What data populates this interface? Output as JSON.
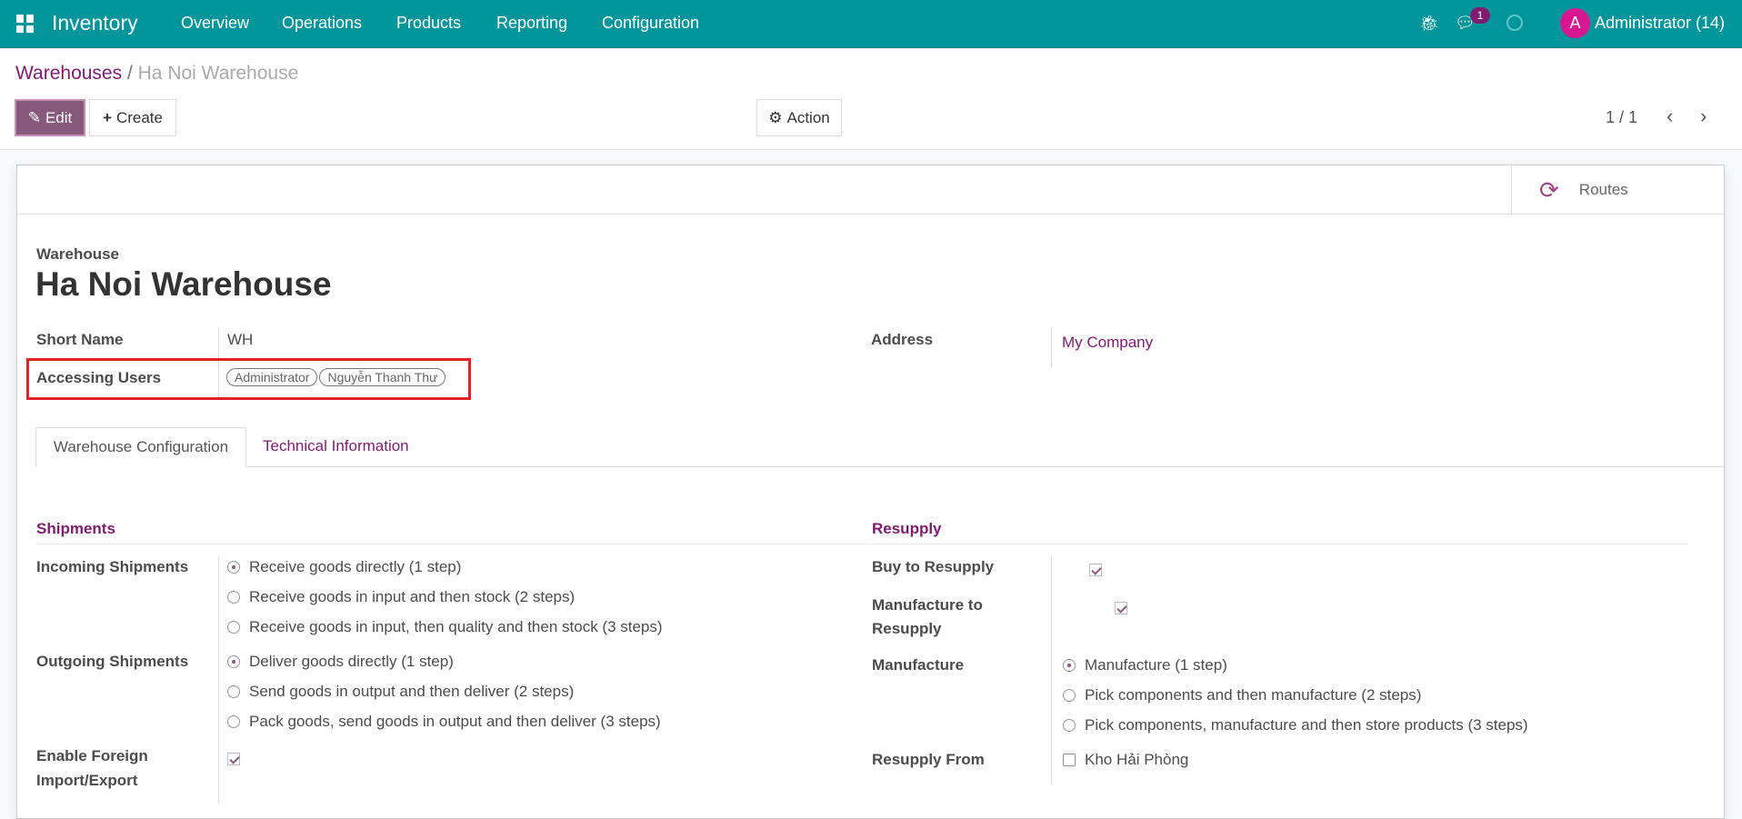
{
  "nav": {
    "app": "Inventory",
    "menus": [
      "Overview",
      "Operations",
      "Products",
      "Reporting",
      "Configuration"
    ],
    "messages_badge": "1",
    "avatar_letter": "A",
    "user": "Administrator (14)"
  },
  "breadcrumb": {
    "parent": "Warehouses",
    "current": "Ha Noi Warehouse"
  },
  "toolbar": {
    "edit": "Edit",
    "create": "Create",
    "action": "Action",
    "pager": "1 / 1"
  },
  "buttons": {
    "routes": "Routes"
  },
  "form": {
    "type_label": "Warehouse",
    "title": "Ha Noi Warehouse",
    "short_name_label": "Short Name",
    "short_name": "WH",
    "accessing_users_label": "Accessing Users",
    "accessing_users": [
      "Administrator",
      "Nguyễn Thanh Thư"
    ],
    "address_label": "Address",
    "address": "My Company"
  },
  "tabs": [
    "Warehouse Configuration",
    "Technical Information"
  ],
  "shipments": {
    "title": "Shipments",
    "incoming_label": "Incoming Shipments",
    "incoming_options": [
      "Receive goods directly (1 step)",
      "Receive goods in input and then stock (2 steps)",
      "Receive goods in input, then quality and then stock (3 steps)"
    ],
    "incoming_selected": 0,
    "outgoing_label": "Outgoing Shipments",
    "outgoing_options": [
      "Deliver goods directly (1 step)",
      "Send goods in output and then deliver (2 steps)",
      "Pack goods, send goods in output and then deliver (3 steps)"
    ],
    "outgoing_selected": 0,
    "foreign_label_1": "Enable Foreign",
    "foreign_label_2": "Import/Export",
    "foreign_checked": true
  },
  "resupply": {
    "title": "Resupply",
    "buy_label": "Buy to Resupply",
    "buy_checked": true,
    "manufacture_to_label_1": "Manufacture to",
    "manufacture_to_label_2": "Resupply",
    "manufacture_to_checked": true,
    "manufacture_label": "Manufacture",
    "manufacture_options": [
      "Manufacture (1 step)",
      "Pick components and then manufacture (2 steps)",
      "Pick components, manufacture and then store products (3 steps)"
    ],
    "manufacture_selected": 0,
    "from_label": "Resupply From",
    "from_option": "Kho Hải Phòng",
    "from_checked": false
  },
  "colors": {
    "navbar": "#00959a",
    "primary": "#875a7b",
    "link": "#7c1d6f",
    "highlight": "#e0202a"
  }
}
